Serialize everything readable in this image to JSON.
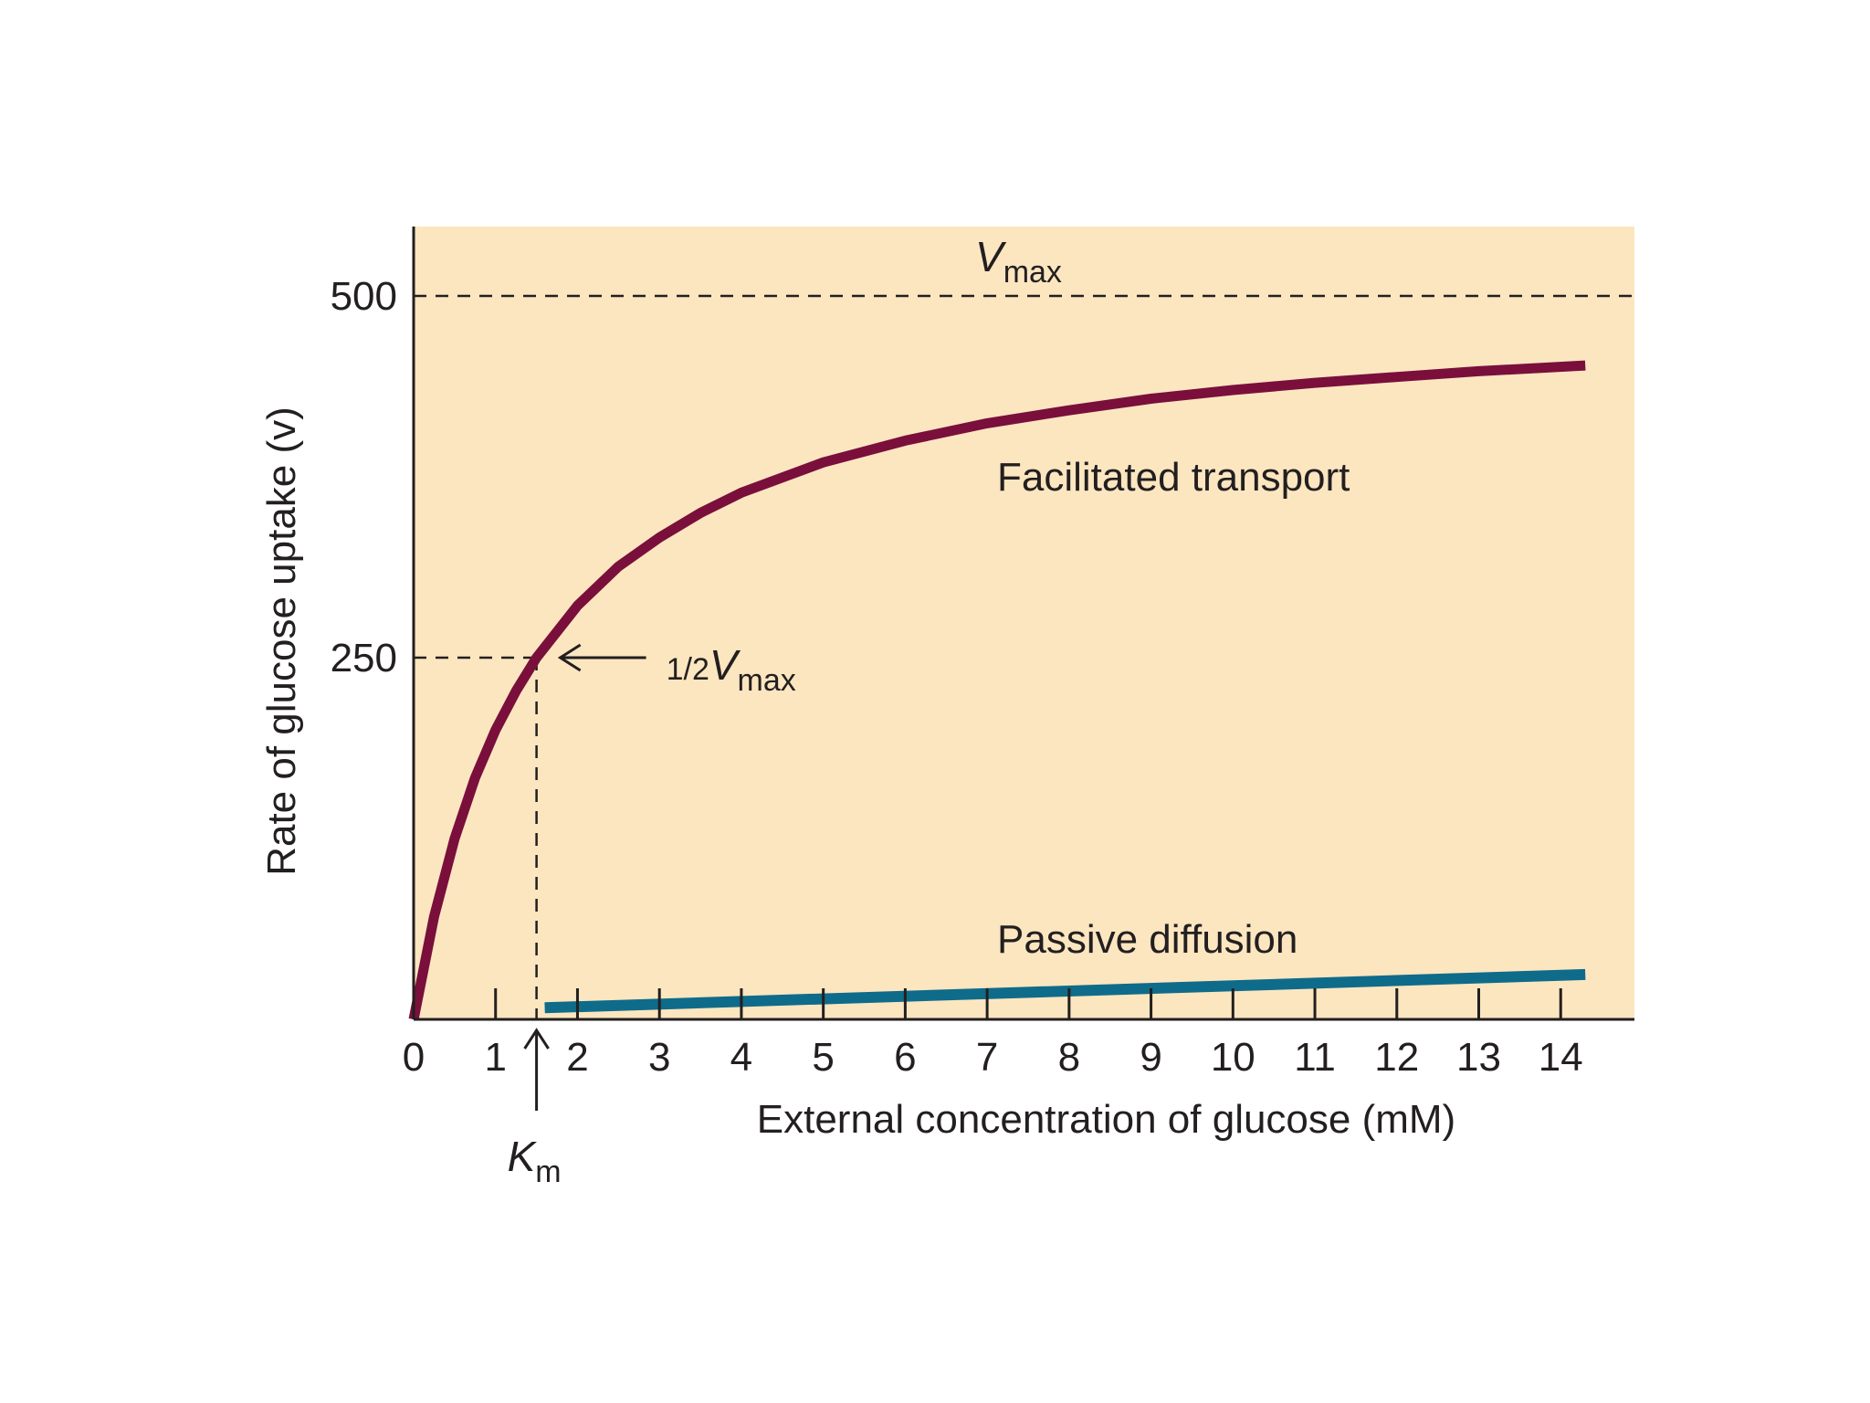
{
  "chart_data": {
    "type": "line",
    "xlabel": "External concentration of glucose (mM)",
    "ylabel": "Rate of glucose uptake (v)",
    "xlim": [
      0,
      14.9
    ],
    "ylim": [
      0,
      548
    ],
    "x_ticks": [
      "0",
      "1",
      "2",
      "3",
      "4",
      "5",
      "6",
      "7",
      "8",
      "9",
      "10",
      "11",
      "12",
      "13",
      "14"
    ],
    "y_ticks": [
      "250",
      "500"
    ],
    "background_color": "#fbe6c0",
    "grid": false,
    "series": [
      {
        "name": "Facilitated transport",
        "color": "#7a0f3c",
        "x": [
          0,
          0.25,
          0.5,
          0.75,
          1.0,
          1.25,
          1.5,
          2,
          2.5,
          3,
          3.5,
          4,
          5,
          6,
          7,
          8,
          9,
          10,
          11,
          12,
          13,
          14.3
        ],
        "y": [
          0,
          71,
          125,
          167,
          200,
          227,
          250,
          286,
          313,
          333,
          350,
          364,
          385,
          400,
          412,
          421,
          429,
          435,
          440,
          444,
          448,
          452
        ]
      },
      {
        "name": "Passive diffusion",
        "color": "#0f6b8a",
        "x": [
          1.6,
          14.3
        ],
        "y": [
          8,
          31
        ]
      }
    ],
    "reference_lines": {
      "vmax_value": 500,
      "half_vmax_value": 250,
      "km_value": 1.5
    },
    "annotations": {
      "vmax": "V",
      "vmax_sub": "max",
      "half_vmax_prefix": "1/2",
      "half_vmax": "V",
      "half_vmax_sub": "max",
      "km": "K",
      "km_sub": "m"
    }
  }
}
